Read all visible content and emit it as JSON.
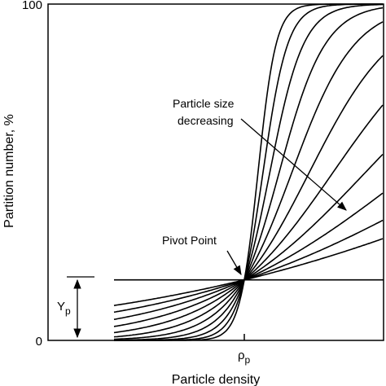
{
  "chart_data": {
    "type": "line",
    "xlabel": "Particle density",
    "ylabel": "Partition number, %",
    "ylim": [
      0,
      100
    ],
    "yticks": [
      "0",
      "100"
    ],
    "xtick_label_main": "ρ",
    "xtick_label_sub": "p",
    "grid": false,
    "pivot": {
      "y": 18
    },
    "series_count": 12,
    "annotations": {
      "size_line1": "Particle size",
      "size_line2": "decreasing",
      "pivot_label": "Pivot Point",
      "yp_main": "Y",
      "yp_sub": "p"
    },
    "colors": {
      "line": "#000000",
      "background": "#ffffff"
    }
  }
}
